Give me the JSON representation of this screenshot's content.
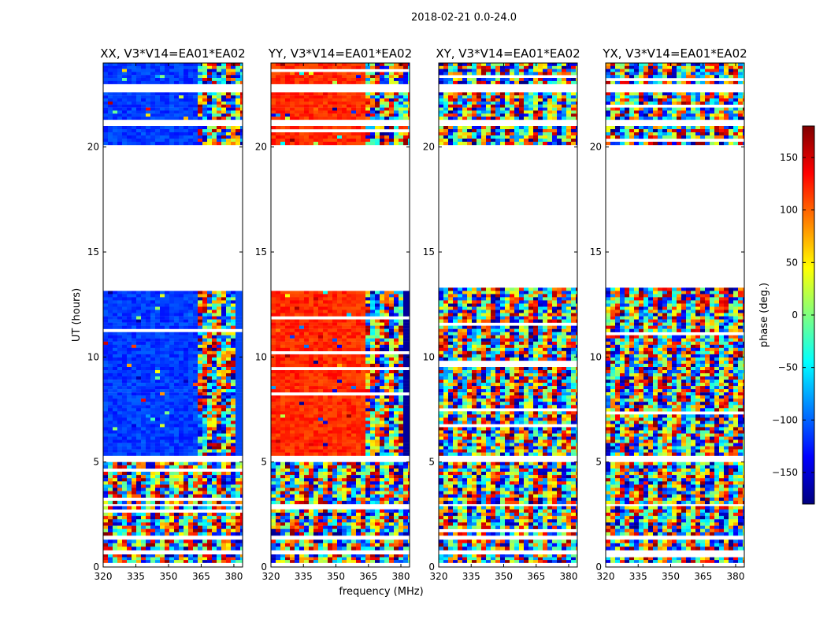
{
  "figure_title": "2018-02-21 0.0-24.0",
  "chart_data": {
    "type": "heatmap",
    "title": "2018-02-21 0.0-24.0",
    "xlabel": "frequency (MHz)",
    "ylabel": "UT (hours)",
    "xlim": [
      320,
      384
    ],
    "ylim": [
      0,
      24
    ],
    "xticks": [
      320,
      335,
      350,
      365,
      380
    ],
    "yticks": [
      0,
      5,
      10,
      15,
      20
    ],
    "panels": [
      {
        "title": "XX, V3*V14=EA01*EA02",
        "polarization": "XX",
        "dominant_phase_deg": -115
      },
      {
        "title": "YY, V3*V14=EA01*EA02",
        "polarization": "YY",
        "dominant_phase_deg": 120
      },
      {
        "title": "XY, V3*V14=EA01*EA02",
        "polarization": "XY",
        "dominant_phase_deg": null
      },
      {
        "title": "YX, V3*V14=EA01*EA02",
        "polarization": "YX",
        "dominant_phase_deg": null
      }
    ],
    "coherent_band_mhz": [
      320,
      362
    ],
    "data_blocks_ut_hours": [
      [
        0.2,
        0.6
      ],
      [
        0.8,
        1.3
      ],
      [
        1.5,
        2.9
      ],
      [
        3.0,
        5.0
      ],
      [
        5.3,
        13.3
      ],
      [
        20.1,
        21.0
      ],
      [
        21.3,
        22.6
      ],
      [
        23.0,
        24.0
      ]
    ],
    "colorbar": {
      "label": "phase (deg.)",
      "range": [
        -180,
        180
      ],
      "ticks": [
        -150,
        -100,
        -50,
        0,
        50,
        100,
        150
      ],
      "colormap": "jet",
      "colormap_stops": [
        "#00007f",
        "#0000ff",
        "#007fff",
        "#00ffff",
        "#7fff7f",
        "#ffff00",
        "#ff7f00",
        "#ff0000",
        "#7f0000"
      ]
    }
  }
}
